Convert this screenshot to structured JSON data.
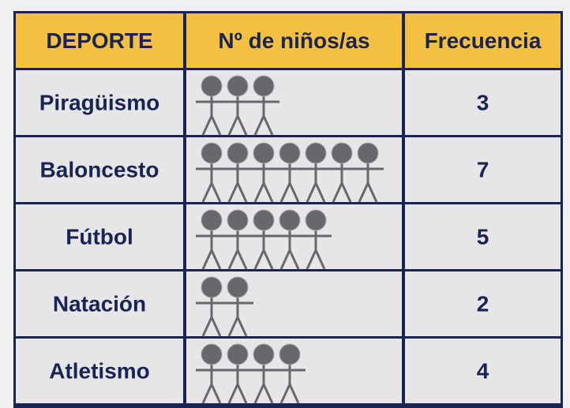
{
  "table": {
    "header": [
      "DEPORTE",
      "Nº de niños/as",
      "Frecuencia"
    ],
    "rows": [
      [
        "Piragüismo",
        3
      ],
      [
        "Baloncesto",
        7
      ],
      [
        "Fútbol",
        5
      ],
      [
        "Natación",
        2
      ],
      [
        "Atletismo",
        4
      ]
    ]
  }
}
